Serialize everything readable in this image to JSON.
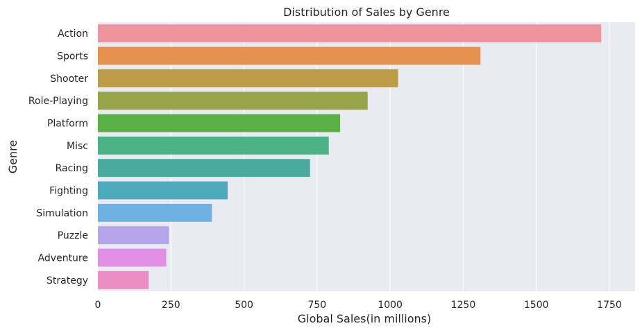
{
  "chart_data": {
    "type": "bar",
    "orientation": "horizontal",
    "title": "Distribution of Sales by Genre",
    "xlabel": "Global Sales(in millions)",
    "ylabel": "Genre",
    "xlim": [
      0,
      1800
    ],
    "xticks": [
      0,
      250,
      500,
      750,
      1000,
      1250,
      1500,
      1750
    ],
    "grid": true,
    "categories": [
      "Action",
      "Sports",
      "Shooter",
      "Role-Playing",
      "Platform",
      "Misc",
      "Racing",
      "Fighting",
      "Simulation",
      "Puzzle",
      "Adventure",
      "Strategy"
    ],
    "values": [
      1722,
      1309,
      1027,
      923,
      829,
      790,
      726,
      444,
      390,
      243,
      234,
      174
    ],
    "colors": [
      "#ed94a0",
      "#e5914f",
      "#bd9c47",
      "#98a34a",
      "#5aaf45",
      "#4db386",
      "#4bab9f",
      "#4ea9bd",
      "#6cb0e4",
      "#b5a4ea",
      "#e18ee7",
      "#eb8ec7"
    ]
  }
}
